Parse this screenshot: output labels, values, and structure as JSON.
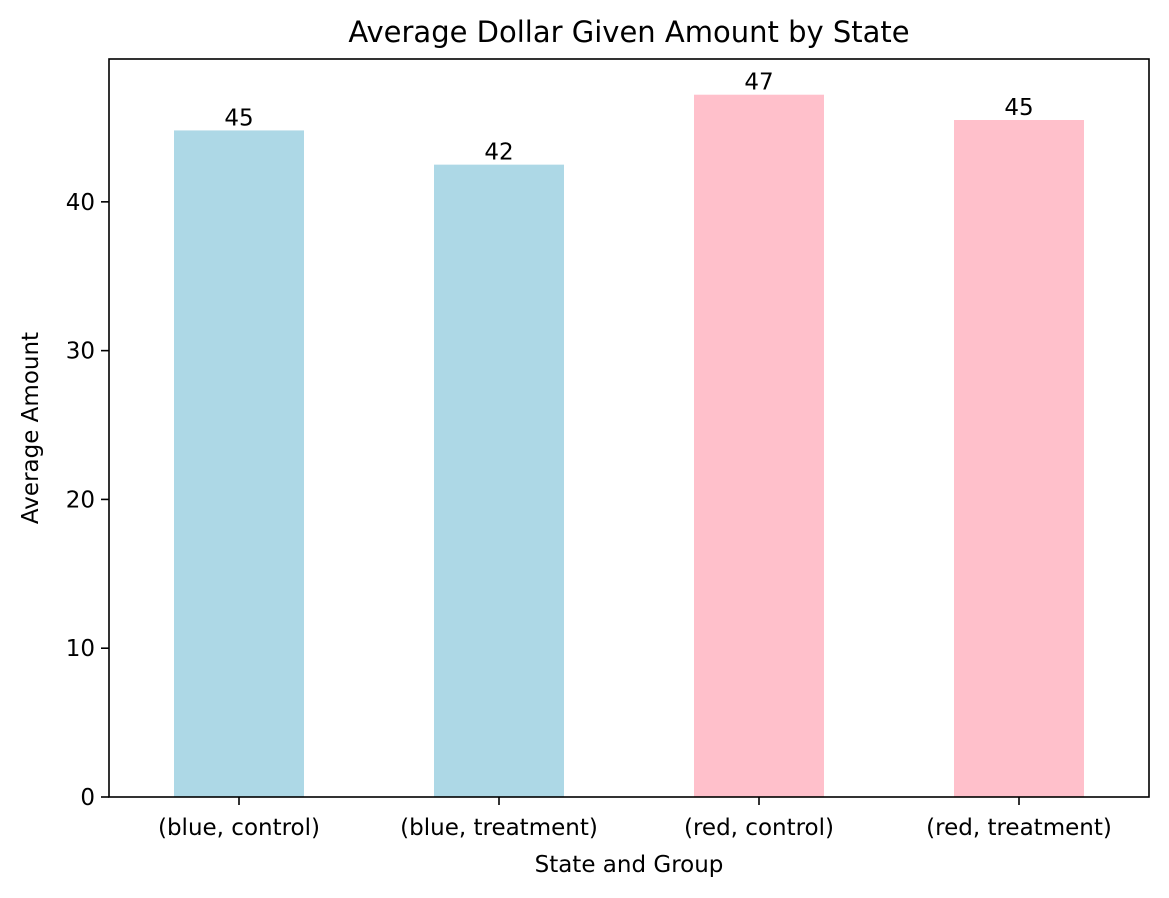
{
  "chart_data": {
    "type": "bar",
    "title": "Average Dollar Given Amount by State",
    "xlabel": "State and Group",
    "ylabel": "Average Amount",
    "categories": [
      "(blue, control)",
      "(blue, treatment)",
      "(red, control)",
      "(red, treatment)"
    ],
    "values": [
      44.8,
      42.5,
      47.2,
      45.5
    ],
    "data_labels": [
      "45",
      "42",
      "47",
      "45"
    ],
    "bar_colors": [
      "#add8e6",
      "#add8e6",
      "#ffc0cb",
      "#ffc0cb"
    ],
    "ylim": [
      0,
      49.6
    ],
    "yticks": [
      0,
      10,
      20,
      30,
      40
    ],
    "grid": false,
    "legend": "none"
  }
}
